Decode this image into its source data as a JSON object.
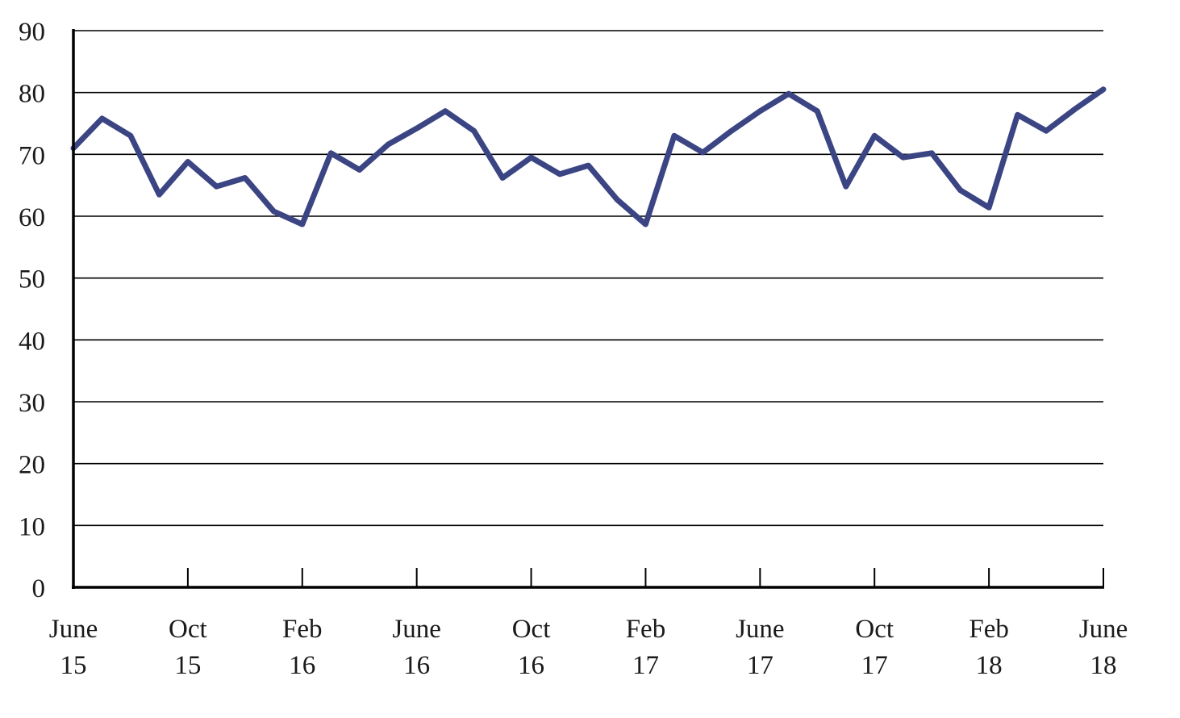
{
  "chart_data": {
    "type": "line",
    "title": "",
    "xlabel": "",
    "ylabel": "",
    "ylim": [
      0,
      90
    ],
    "yticks": [
      "0",
      "10",
      "20",
      "30",
      "40",
      "50",
      "60",
      "70",
      "80",
      "90"
    ],
    "xlim": [
      "2015-06",
      "2018-06"
    ],
    "grid": true,
    "legend": "none",
    "colors": {
      "line": "#3b4583",
      "axis": "#000000",
      "text": "#1a1a1a"
    },
    "x_ticks": [
      {
        "month": "2015-06",
        "line1": "June",
        "line2": "15"
      },
      {
        "month": "2015-10",
        "line1": "Oct",
        "line2": "15"
      },
      {
        "month": "2016-02",
        "line1": "Feb",
        "line2": "16"
      },
      {
        "month": "2016-06",
        "line1": "June",
        "line2": "16"
      },
      {
        "month": "2016-10",
        "line1": "Oct",
        "line2": "16"
      },
      {
        "month": "2017-02",
        "line1": "Feb",
        "line2": "17"
      },
      {
        "month": "2017-06",
        "line1": "June",
        "line2": "17"
      },
      {
        "month": "2017-10",
        "line1": "Oct",
        "line2": "17"
      },
      {
        "month": "2018-02",
        "line1": "Feb",
        "line2": "18"
      },
      {
        "month": "2018-06",
        "line1": "June",
        "line2": "18"
      }
    ],
    "series": [
      {
        "x": [
          "2015-06",
          "2015-07",
          "2015-08",
          "2015-09",
          "2015-10",
          "2015-11",
          "2015-12",
          "2016-01",
          "2016-02",
          "2016-03",
          "2016-04",
          "2016-05",
          "2016-06",
          "2016-07",
          "2016-08",
          "2016-09",
          "2016-10",
          "2016-11",
          "2016-12",
          "2017-01",
          "2017-02",
          "2017-03",
          "2017-04",
          "2017-05",
          "2017-06",
          "2017-07",
          "2017-08",
          "2017-09",
          "2017-10",
          "2017-11",
          "2017-12",
          "2018-01",
          "2018-02",
          "2018-03",
          "2018-04",
          "2018-05",
          "2018-06"
        ],
        "values": [
          71.0,
          75.8,
          73.0,
          63.5,
          68.8,
          64.8,
          66.2,
          60.8,
          58.7,
          70.2,
          67.5,
          71.6,
          74.2,
          77.0,
          73.8,
          66.2,
          69.5,
          66.8,
          68.2,
          62.7,
          58.7,
          73.0,
          70.3,
          73.8,
          77.0,
          79.8,
          77.0,
          64.8,
          73.0,
          69.5,
          70.2,
          64.2,
          61.4,
          76.4,
          73.8,
          77.3,
          80.5
        ]
      }
    ]
  }
}
